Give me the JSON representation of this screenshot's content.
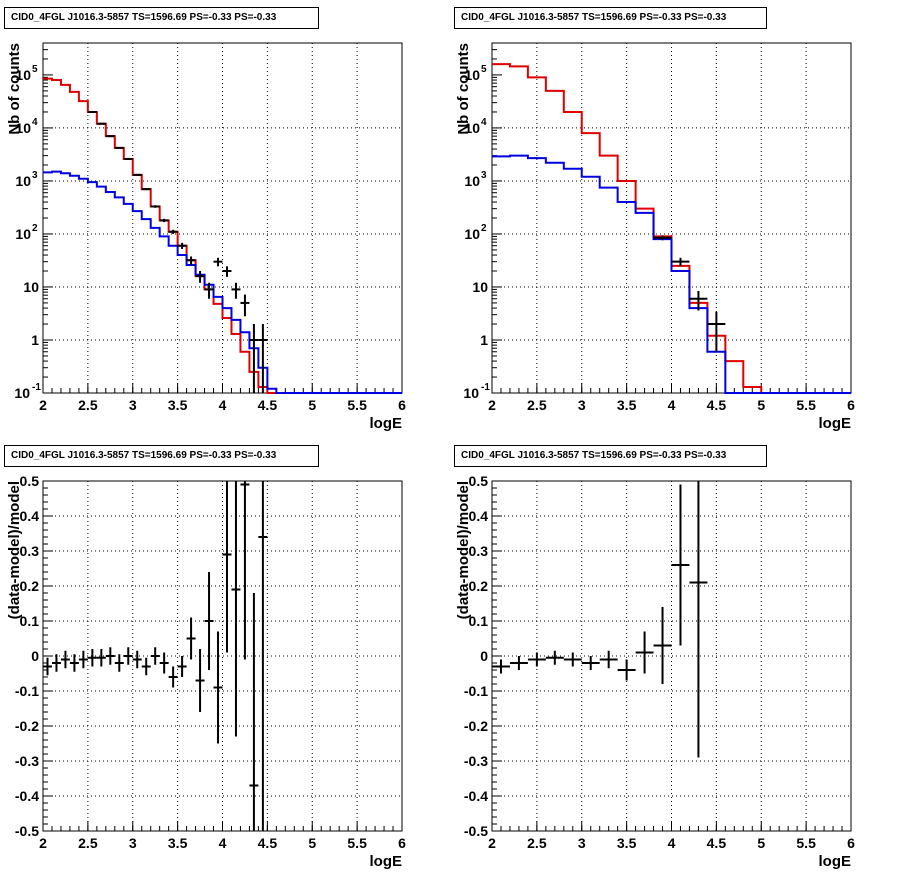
{
  "colors": {
    "data": "#000000",
    "model_total": "#e00000",
    "model_component": "#0000e0",
    "grid": "#000000"
  },
  "chart_data": [
    {
      "type": "line",
      "title": "CID0_4FGL J1016.3-5857 TS=1596.69 PS=-0.33 PS=-0.33",
      "xlabel": "logE",
      "ylabel": "Nb of counts",
      "yscale": "log",
      "xlim": [
        2,
        6
      ],
      "ylim": [
        0.1,
        400000
      ],
      "xticks": [
        "2",
        "2.5",
        "3",
        "3.5",
        "4",
        "4.5",
        "5",
        "5.5",
        "6"
      ],
      "yticks": [
        "10^-1",
        "1",
        "10",
        "10^2",
        "10^3",
        "10^4",
        "10^5"
      ],
      "grid": true,
      "series": [
        {
          "style": "hist",
          "color": "red",
          "bin_width": 0.1,
          "x": [
            2.0,
            2.1,
            2.2,
            2.3,
            2.4,
            2.5,
            2.6,
            2.7,
            2.8,
            2.9,
            3.0,
            3.1,
            3.2,
            3.3,
            3.4,
            3.5,
            3.6,
            3.7,
            3.8,
            3.9,
            4.0,
            4.1,
            4.2,
            4.3,
            4.4,
            4.5,
            4.6,
            4.7,
            4.8,
            4.9,
            5.0,
            5.1,
            5.2,
            5.3,
            5.4,
            5.5,
            5.6,
            5.7,
            5.8,
            5.9
          ],
          "values": [
            85000,
            80000,
            65000,
            48000,
            32000,
            20000,
            12000,
            7000,
            4200,
            2600,
            1300,
            700,
            330,
            180,
            110,
            60,
            32,
            16,
            9,
            4.8,
            2.6,
            1.3,
            0.6,
            0.25,
            0.13,
            0.1,
            0.1,
            0.1,
            0.1,
            0.1,
            0.1,
            0.1,
            0.1,
            0.1,
            0.1,
            0.1,
            0.1,
            0.1,
            0.1,
            0.1
          ]
        },
        {
          "style": "hist",
          "color": "blue",
          "bin_width": 0.1,
          "x": [
            2.0,
            2.1,
            2.2,
            2.3,
            2.4,
            2.5,
            2.6,
            2.7,
            2.8,
            2.9,
            3.0,
            3.1,
            3.2,
            3.3,
            3.4,
            3.5,
            3.6,
            3.7,
            3.8,
            3.9,
            4.0,
            4.1,
            4.2,
            4.3,
            4.4,
            4.5,
            4.6,
            4.7,
            4.8,
            4.9,
            5.0,
            5.1,
            5.2,
            5.3,
            5.4,
            5.5,
            5.6,
            5.7,
            5.8,
            5.9
          ],
          "values": [
            1450,
            1500,
            1400,
            1250,
            1100,
            950,
            780,
            620,
            490,
            370,
            270,
            190,
            130,
            90,
            60,
            40,
            26,
            17,
            11,
            6.5,
            4.0,
            2.4,
            1.4,
            0.7,
            0.3,
            0.12,
            0.1,
            0.1,
            0.1,
            0.1,
            0.1,
            0.1,
            0.1,
            0.1,
            0.1,
            0.1,
            0.1,
            0.1,
            0.1,
            0.1
          ]
        },
        {
          "style": "errorbar",
          "color": "black",
          "name": "data",
          "x": [
            2.55,
            2.65,
            2.75,
            2.85,
            2.95,
            3.05,
            3.15,
            3.25,
            3.35,
            3.45,
            3.55,
            3.65,
            3.75,
            3.85,
            3.95,
            4.05,
            4.15,
            4.25,
            4.35,
            4.45
          ],
          "values": [
            20000,
            12000,
            7000,
            4200,
            2600,
            1300,
            700,
            330,
            180,
            110,
            60,
            32,
            16,
            9,
            30,
            20,
            9,
            5,
            1,
            1
          ],
          "xerr": 0.05,
          "yerr_low": [
            140,
            110,
            84,
            65,
            51,
            36,
            26,
            18,
            13,
            10,
            8,
            5.6,
            4,
            3,
            5.5,
            4.5,
            3,
            2.2,
            1,
            1
          ],
          "yerr_high": [
            140,
            110,
            84,
            65,
            51,
            36,
            26,
            18,
            13,
            10,
            8,
            5.6,
            4,
            3,
            5.5,
            4.5,
            3,
            2.2,
            1,
            1
          ]
        }
      ]
    },
    {
      "type": "line",
      "title": "CID0_4FGL J1016.3-5857 TS=1596.69 PS=-0.33 PS=-0.33",
      "xlabel": "logE",
      "ylabel": "Nb of counts",
      "yscale": "log",
      "xlim": [
        2,
        6
      ],
      "ylim": [
        0.1,
        400000
      ],
      "xticks": [
        "2",
        "2.5",
        "3",
        "3.5",
        "4",
        "4.5",
        "5",
        "5.5",
        "6"
      ],
      "yticks": [
        "10^-1",
        "1",
        "10",
        "10^2",
        "10^3",
        "10^4",
        "10^5"
      ],
      "grid": true,
      "series": [
        {
          "style": "hist",
          "color": "red",
          "bin_width": 0.2,
          "x": [
            2.0,
            2.2,
            2.4,
            2.6,
            2.8,
            3.0,
            3.2,
            3.4,
            3.6,
            3.8,
            4.0,
            4.2,
            4.4,
            4.6,
            4.8,
            5.0,
            5.2,
            5.4,
            5.6,
            5.8
          ],
          "values": [
            160000,
            145000,
            90000,
            50000,
            20000,
            8000,
            3000,
            1000,
            300,
            90,
            25,
            5,
            1.2,
            0.4,
            0.13,
            0.1,
            0.1,
            0.1,
            0.1,
            0.1
          ]
        },
        {
          "style": "hist",
          "color": "blue",
          "bin_width": 0.2,
          "x": [
            2.0,
            2.2,
            2.4,
            2.6,
            2.8,
            3.0,
            3.2,
            3.4,
            3.6,
            3.8,
            4.0,
            4.2,
            4.4,
            4.6,
            4.8,
            5.0,
            5.2,
            5.4,
            5.6,
            5.8
          ],
          "values": [
            2900,
            3000,
            2700,
            2200,
            1700,
            1200,
            750,
            400,
            250,
            80,
            20,
            4,
            0.6,
            0.1,
            0.1,
            0.1,
            0.1,
            0.1,
            0.1,
            0.1
          ]
        },
        {
          "style": "errorbar",
          "color": "black",
          "name": "data",
          "x": [
            3.9,
            4.1,
            4.3,
            4.5
          ],
          "values": [
            85,
            30,
            6,
            2
          ],
          "xerr": 0.1,
          "yerr_low": [
            9,
            5.5,
            2.4,
            1.4
          ],
          "yerr_high": [
            9,
            5.5,
            2.4,
            1.4
          ]
        }
      ]
    },
    {
      "type": "scatter",
      "title": "CID0_4FGL J1016.3-5857 TS=1596.69 PS=-0.33 PS=-0.33",
      "xlabel": "logE",
      "ylabel": "(data-model)/model",
      "xlim": [
        2,
        6
      ],
      "ylim": [
        -0.5,
        0.5
      ],
      "xticks": [
        "2",
        "2.5",
        "3",
        "3.5",
        "4",
        "4.5",
        "5",
        "5.5",
        "6"
      ],
      "yticks": [
        "-0.5",
        "-0.4",
        "-0.3",
        "-0.2",
        "-0.1",
        "0",
        "0.1",
        "0.2",
        "0.3",
        "0.4",
        "0.5"
      ],
      "grid": true,
      "series": [
        {
          "style": "errorbar",
          "color": "black",
          "x": [
            2.05,
            2.15,
            2.25,
            2.35,
            2.45,
            2.55,
            2.65,
            2.75,
            2.85,
            2.95,
            3.05,
            3.15,
            3.25,
            3.35,
            3.45,
            3.55,
            3.65,
            3.75,
            3.85,
            3.95,
            4.05,
            4.15,
            4.25,
            4.35,
            4.45
          ],
          "values": [
            -0.03,
            -0.02,
            -0.01,
            -0.02,
            -0.01,
            -0.005,
            -0.005,
            0.0,
            -0.02,
            0.0,
            -0.01,
            -0.03,
            0.0,
            -0.02,
            -0.06,
            -0.03,
            0.05,
            -0.07,
            0.1,
            -0.09,
            0.29,
            0.19,
            0.49,
            -0.37,
            0.34
          ],
          "xerr": 0.05,
          "yerr": [
            0.025,
            0.025,
            0.025,
            0.025,
            0.025,
            0.025,
            0.025,
            0.025,
            0.025,
            0.025,
            0.025,
            0.025,
            0.025,
            0.03,
            0.03,
            0.03,
            0.06,
            0.09,
            0.14,
            0.16,
            0.28,
            0.42,
            0.5,
            0.55,
            0.85
          ]
        }
      ]
    },
    {
      "type": "scatter",
      "title": "CID0_4FGL J1016.3-5857 TS=1596.69 PS=-0.33 PS=-0.33",
      "xlabel": "logE",
      "ylabel": "(data-model)/model",
      "xlim": [
        2,
        6
      ],
      "ylim": [
        -0.5,
        0.5
      ],
      "xticks": [
        "2",
        "2.5",
        "3",
        "3.5",
        "4",
        "4.5",
        "5",
        "5.5",
        "6"
      ],
      "yticks": [
        "-0.5",
        "-0.4",
        "-0.3",
        "-0.2",
        "-0.1",
        "0",
        "0.1",
        "0.2",
        "0.3",
        "0.4",
        "0.5"
      ],
      "grid": true,
      "series": [
        {
          "style": "errorbar",
          "color": "black",
          "x": [
            2.1,
            2.3,
            2.5,
            2.7,
            2.9,
            3.1,
            3.3,
            3.5,
            3.7,
            3.9,
            4.1,
            4.3
          ],
          "values": [
            -0.03,
            -0.02,
            -0.01,
            -0.005,
            -0.01,
            -0.02,
            -0.01,
            -0.04,
            0.01,
            0.03,
            0.26,
            0.21
          ],
          "xerr": 0.1,
          "yerr": [
            0.02,
            0.02,
            0.02,
            0.02,
            0.02,
            0.02,
            0.025,
            0.03,
            0.06,
            0.11,
            0.23,
            0.5
          ]
        }
      ]
    }
  ]
}
